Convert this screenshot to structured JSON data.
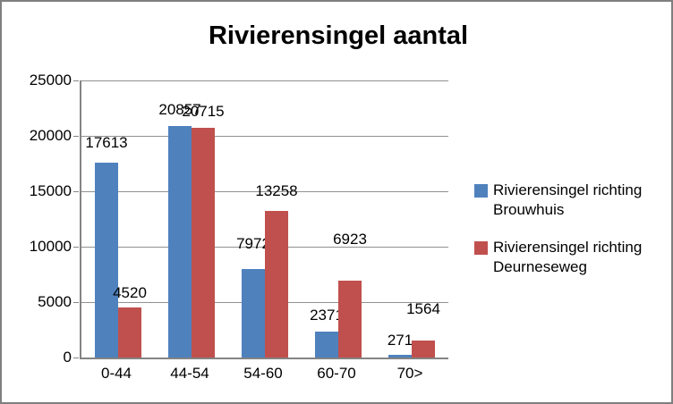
{
  "title": "Rivierensingel aantal",
  "chart_data": {
    "type": "bar",
    "title": "Rivierensingel aantal",
    "categories": [
      "0-44",
      "44-54",
      "54-60",
      "60-70",
      "70>"
    ],
    "series": [
      {
        "name": "Rivierensingel richting Brouwhuis",
        "color": "#4F81BD",
        "values": [
          17613,
          20857,
          7972,
          2371,
          271
        ]
      },
      {
        "name": "Rivierensingel richting Deurneseweg",
        "color": "#C0504D",
        "values": [
          4520,
          20715,
          13258,
          6923,
          1564
        ]
      }
    ],
    "xlabel": "",
    "ylabel": "",
    "ylim": [
      0,
      25000
    ],
    "y_ticks": [
      "0",
      "5000",
      "10000",
      "15000",
      "20000",
      "25000"
    ],
    "grid": true,
    "legend_position": "right",
    "data_labels": true
  },
  "colors": {
    "series_blue": "#4F81BD",
    "series_red": "#C0504D",
    "gridline": "#919191",
    "axis": "#848484",
    "frame_border": "#7F7F7F",
    "text": "#000000"
  }
}
